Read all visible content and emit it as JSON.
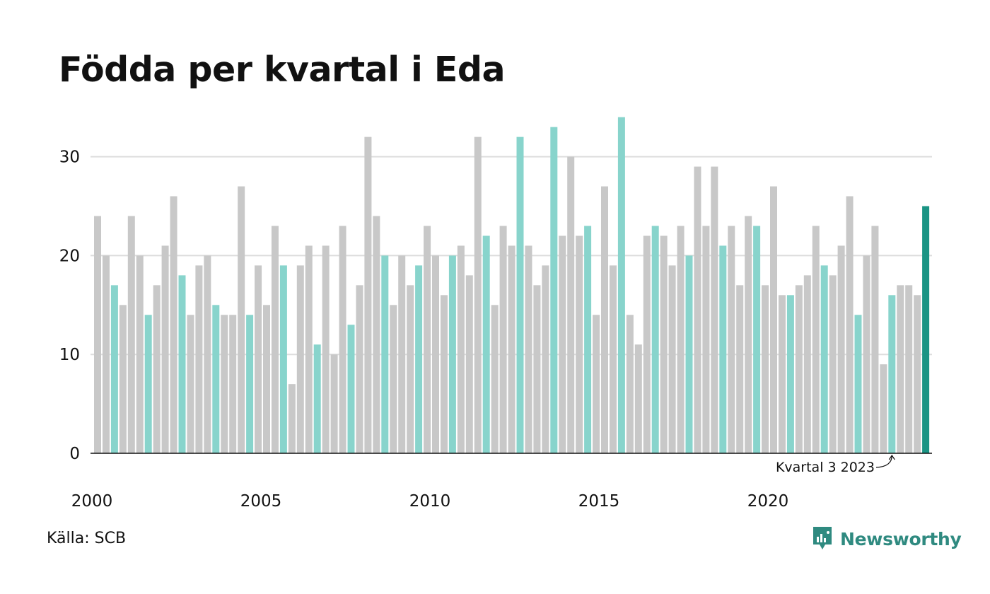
{
  "title": "Födda per kvartal i Eda",
  "source": "Källa: SCB",
  "brand": {
    "name": "Newsworthy",
    "icon": "newsworthy-logo-icon"
  },
  "colors": {
    "other_quarter": "#c8c8c8",
    "q3_quarter": "#88d4cc",
    "latest": "#1a9484",
    "axis": "#111111",
    "grid": "#dddddd",
    "brand": "#2f8a80"
  },
  "annotation": {
    "text": "Kvartal 3 2023"
  },
  "chart_data": {
    "type": "bar",
    "title": "Födda per kvartal i Eda",
    "xlabel": "",
    "ylabel": "",
    "ylim": [
      0,
      34
    ],
    "yticks": [
      0,
      10,
      20,
      30
    ],
    "grid": true,
    "x_tick_labels": [
      "2000",
      "2005",
      "2010",
      "2015",
      "2020"
    ],
    "start": "2000 Q1",
    "highlight": "Q3 bars colored teal; latest quarter (Q3 2024) dark teal",
    "values": [
      24,
      20,
      17,
      15,
      24,
      20,
      14,
      17,
      21,
      26,
      18,
      14,
      19,
      20,
      15,
      14,
      14,
      27,
      14,
      19,
      15,
      23,
      19,
      7,
      19,
      21,
      11,
      21,
      10,
      23,
      13,
      17,
      32,
      24,
      20,
      15,
      20,
      17,
      19,
      23,
      20,
      16,
      20,
      21,
      18,
      32,
      22,
      15,
      23,
      21,
      32,
      21,
      17,
      19,
      33,
      22,
      30,
      22,
      23,
      14,
      27,
      19,
      34,
      14,
      11,
      22,
      23,
      22,
      19,
      23,
      20,
      29,
      23,
      29,
      21,
      23,
      17,
      24,
      23,
      17,
      27,
      16,
      16,
      17,
      18,
      23,
      19,
      18,
      21,
      26,
      14,
      20,
      23,
      9,
      16,
      17,
      17,
      16,
      25
    ]
  }
}
